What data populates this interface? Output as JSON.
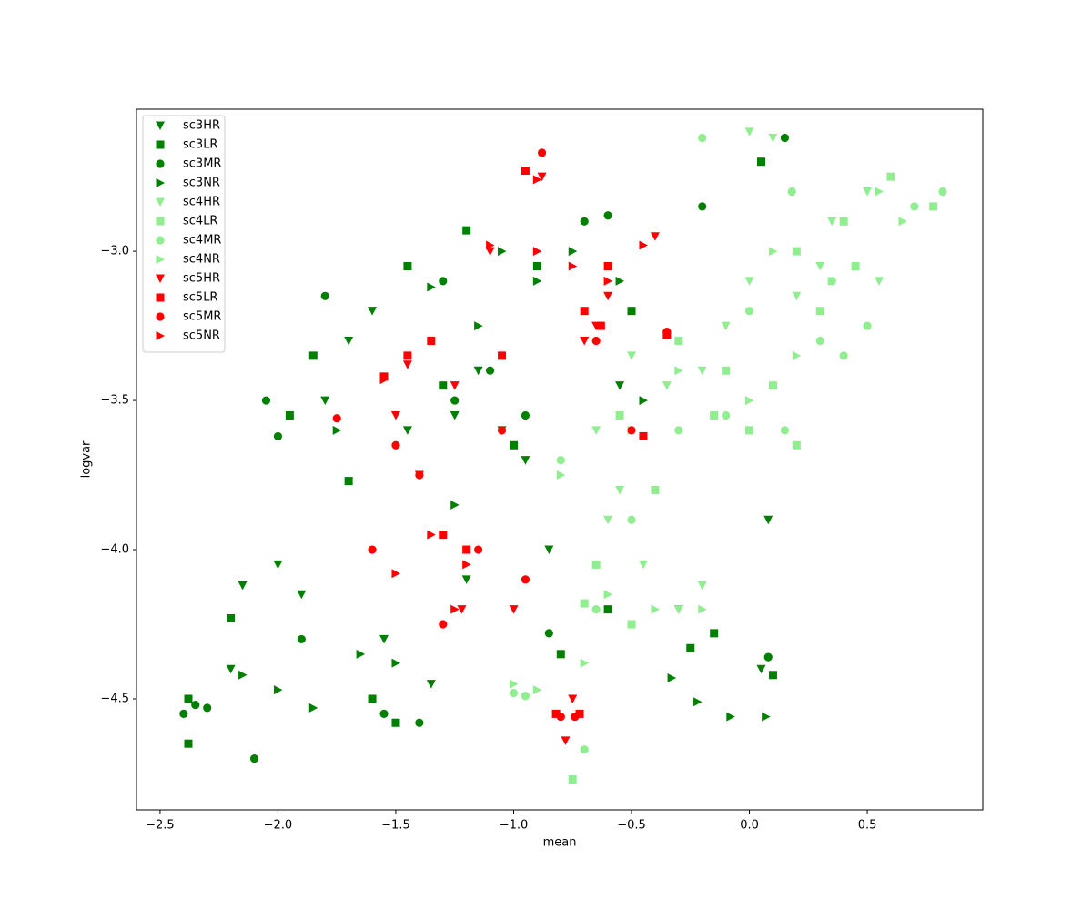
{
  "chart_data": {
    "type": "scatter",
    "x_label": "mean",
    "y_label": "logvar",
    "xlim": [
      -2.6,
      0.99
    ],
    "ylim": [
      -4.872,
      -2.524
    ],
    "xticks": [
      {
        "value": -2.5,
        "label": "−2.5"
      },
      {
        "value": -2.0,
        "label": "−2.0"
      },
      {
        "value": -1.5,
        "label": "−1.5"
      },
      {
        "value": -1.0,
        "label": "−1.0"
      },
      {
        "value": -0.5,
        "label": "−0.5"
      },
      {
        "value": 0.0,
        "label": "0.0"
      },
      0.5
    ],
    "yticks": [
      {
        "value": -3.0,
        "label": "−3.0"
      },
      {
        "value": -3.5,
        "label": "−3.5"
      },
      {
        "value": -4.0,
        "label": "−4.0"
      },
      {
        "value": -4.5,
        "label": "−4.5"
      }
    ],
    "legend": "upper left",
    "series": [
      {
        "name": "sc3HR",
        "color": "#008000",
        "marker": "v",
        "x": [
          -2.2,
          -2.15,
          -2.0,
          -1.9,
          -1.8,
          -1.7,
          -1.55,
          -1.45,
          -1.35,
          -1.25,
          -1.15,
          -1.05,
          -0.95,
          -0.85,
          -0.3,
          0.05,
          0.08,
          -0.55,
          -1.6,
          -1.2
        ],
        "y": [
          -4.4,
          -4.12,
          -4.05,
          -4.15,
          -3.5,
          -3.3,
          -4.3,
          -3.6,
          -4.45,
          -3.55,
          -3.4,
          -3.6,
          -3.7,
          -4.0,
          -4.2,
          -4.4,
          -3.9,
          -3.45,
          -3.2,
          -4.1
        ]
      },
      {
        "name": "sc3LR",
        "color": "#008000",
        "marker": "s",
        "x": [
          -2.38,
          -2.38,
          -2.2,
          -1.95,
          -1.85,
          -1.7,
          -1.6,
          -1.5,
          -1.3,
          -1.2,
          -1.0,
          -0.9,
          -0.8,
          -0.6,
          -0.15,
          0.1,
          -0.5,
          -1.45,
          0.05,
          -0.25
        ],
        "y": [
          -4.5,
          -4.65,
          -4.23,
          -3.55,
          -3.35,
          -3.77,
          -4.5,
          -4.58,
          -3.45,
          -2.93,
          -3.65,
          -3.05,
          -4.35,
          -4.2,
          -4.28,
          -4.42,
          -3.2,
          -3.05,
          -2.7,
          -4.33
        ]
      },
      {
        "name": "sc3MR",
        "color": "#008000",
        "marker": "o",
        "x": [
          -2.4,
          -2.35,
          -2.3,
          -2.1,
          -2.05,
          -1.9,
          -1.8,
          -1.55,
          -1.4,
          -1.3,
          -1.1,
          -0.95,
          -0.7,
          -0.6,
          -0.2,
          0.08,
          0.15,
          -0.85,
          -2.0,
          -1.25
        ],
        "y": [
          -4.55,
          -4.52,
          -4.53,
          -4.7,
          -3.5,
          -4.3,
          -3.15,
          -4.55,
          -4.58,
          -3.1,
          -3.4,
          -3.55,
          -2.9,
          -2.88,
          -2.85,
          -4.36,
          -2.62,
          -4.28,
          -3.62,
          -3.5
        ]
      },
      {
        "name": "sc3NR",
        "color": "#008000",
        "marker": ">",
        "x": [
          -2.15,
          -2.0,
          -1.85,
          -1.65,
          -1.5,
          -1.35,
          -1.15,
          -1.05,
          -0.9,
          -0.75,
          -0.45,
          -0.33,
          -0.22,
          -0.08,
          0.07,
          -0.55,
          -1.75,
          -1.25
        ],
        "y": [
          -4.42,
          -4.47,
          -4.53,
          -4.35,
          -4.38,
          -3.12,
          -3.25,
          -3.0,
          -3.1,
          -3.0,
          -3.5,
          -4.43,
          -4.51,
          -4.56,
          -4.56,
          -3.1,
          -3.6,
          -3.85
        ]
      },
      {
        "name": "sc4HR",
        "color": "#90ee90",
        "marker": "v",
        "x": [
          -0.45,
          -0.3,
          -0.2,
          0.0,
          0.1,
          0.2,
          0.35,
          0.5,
          0.55,
          -0.1,
          -0.35,
          -0.5,
          -0.65,
          -0.55,
          -0.2,
          0.3,
          0.0,
          -0.6
        ],
        "y": [
          -4.05,
          -4.2,
          -4.12,
          -2.6,
          -2.62,
          -3.15,
          -2.9,
          -2.8,
          -3.1,
          -3.25,
          -3.45,
          -3.35,
          -3.6,
          -3.8,
          -3.4,
          -3.05,
          -3.1,
          -3.9
        ]
      },
      {
        "name": "sc4LR",
        "color": "#90ee90",
        "marker": "s",
        "x": [
          -0.75,
          -0.7,
          -0.5,
          -0.4,
          -0.15,
          0.0,
          0.1,
          0.2,
          0.3,
          0.45,
          0.6,
          0.78,
          0.2,
          -0.3,
          -0.1,
          0.4,
          -0.65,
          -0.55
        ],
        "y": [
          -4.77,
          -4.18,
          -4.25,
          -3.8,
          -3.55,
          -3.6,
          -3.45,
          -3.65,
          -3.2,
          -3.05,
          -2.75,
          -2.85,
          -3.0,
          -3.3,
          -3.4,
          -2.9,
          -4.05,
          -3.55
        ]
      },
      {
        "name": "sc4MR",
        "color": "#90ee90",
        "marker": "o",
        "x": [
          -1.0,
          -0.95,
          -0.7,
          -0.65,
          -0.5,
          -0.3,
          -0.1,
          0.15,
          0.3,
          0.4,
          0.5,
          0.7,
          0.82,
          0.18,
          -0.2,
          0.35,
          -0.8,
          0.0
        ],
        "y": [
          -4.48,
          -4.49,
          -4.67,
          -4.2,
          -3.9,
          -3.6,
          -3.55,
          -3.6,
          -3.3,
          -3.35,
          -3.25,
          -2.85,
          -2.8,
          -2.8,
          -2.62,
          -3.1,
          -3.7,
          -3.2
        ]
      },
      {
        "name": "sc4NR",
        "color": "#90ee90",
        "marker": ">",
        "x": [
          -1.0,
          -0.9,
          -0.7,
          -0.6,
          -0.4,
          -0.2,
          0.0,
          0.2,
          0.35,
          0.55,
          0.65,
          -0.3,
          -0.5,
          0.1,
          -0.8
        ],
        "y": [
          -4.45,
          -4.47,
          -4.38,
          -4.15,
          -4.2,
          -4.2,
          -3.5,
          -3.35,
          -3.1,
          -2.8,
          -2.9,
          -3.4,
          -3.6,
          -3.0,
          -3.75
        ]
      },
      {
        "name": "sc5HR",
        "color": "#ff0000",
        "marker": "v",
        "x": [
          -0.88,
          -0.75,
          -0.78,
          -1.0,
          -1.5,
          -1.4,
          -1.3,
          -1.22,
          -1.1,
          -0.7,
          -0.6,
          -0.4,
          -0.65,
          -1.45,
          -1.25
        ],
        "y": [
          -2.75,
          -4.5,
          -4.64,
          -4.2,
          -3.55,
          -3.75,
          -3.95,
          -4.2,
          -3.0,
          -3.3,
          -3.15,
          -2.95,
          -3.25,
          -3.38,
          -3.45
        ]
      },
      {
        "name": "sc5LR",
        "color": "#ff0000",
        "marker": "s",
        "x": [
          -0.95,
          -0.72,
          -0.82,
          -0.63,
          -0.6,
          -0.45,
          -0.35,
          -1.55,
          -1.45,
          -1.3,
          -1.2,
          -1.05,
          -1.35,
          -0.7
        ],
        "y": [
          -2.73,
          -4.55,
          -4.55,
          -3.25,
          -3.05,
          -3.62,
          -3.28,
          -3.42,
          -3.35,
          -3.95,
          -4.0,
          -3.35,
          -3.3,
          -3.2
        ]
      },
      {
        "name": "sc5MR",
        "color": "#ff0000",
        "marker": "o",
        "x": [
          -0.88,
          -0.8,
          -0.74,
          -0.35,
          -0.5,
          -1.6,
          -1.5,
          -1.4,
          -1.3,
          -1.15,
          -0.95,
          -1.05,
          -0.65,
          -1.75
        ],
        "y": [
          -2.67,
          -4.56,
          -4.56,
          -3.27,
          -3.6,
          -4.0,
          -3.65,
          -3.75,
          -4.25,
          -4.0,
          -4.1,
          -3.6,
          -3.3,
          -3.56
        ]
      },
      {
        "name": "sc5NR",
        "color": "#ff0000",
        "marker": ">",
        "x": [
          -0.9,
          -1.55,
          -1.35,
          -1.25,
          -1.1,
          -0.9,
          -0.6,
          -0.45,
          -0.75,
          -1.5,
          -1.2
        ],
        "y": [
          -2.76,
          -3.43,
          -3.95,
          -4.2,
          -2.98,
          -3.0,
          -3.1,
          -2.98,
          -3.05,
          -4.08,
          -4.05
        ]
      }
    ]
  }
}
